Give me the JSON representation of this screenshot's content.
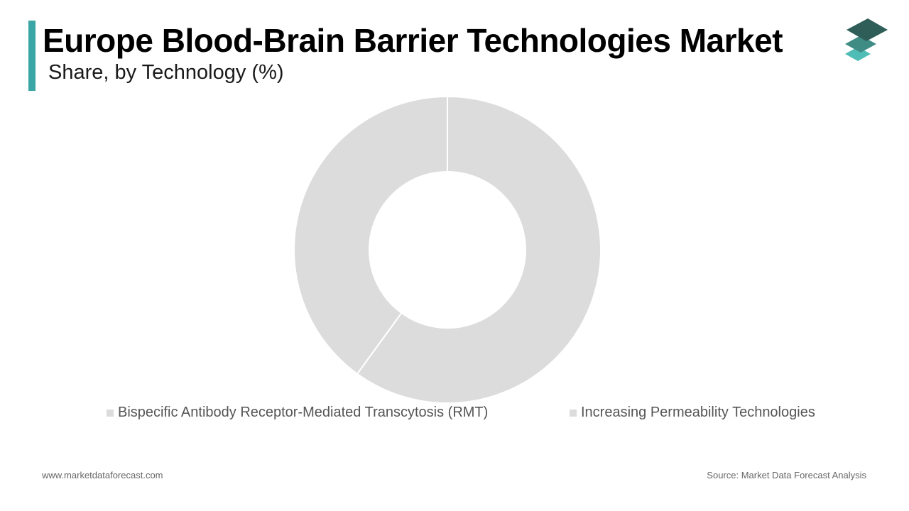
{
  "header": {
    "title": "Europe Blood-Brain Barrier Technologies Market",
    "subtitle": "Share, by Technology (%)",
    "accent_color": "#3aa6a6"
  },
  "logo": {
    "icon": "stacked-layers-logo-icon",
    "colors": [
      "#2f5e58",
      "#3f8c84",
      "#4fbdb5"
    ]
  },
  "chart_data": {
    "type": "pie",
    "donut": true,
    "title": "",
    "series": [
      {
        "name": "",
        "slices": [
          {
            "label": "Bispecific Antibody Receptor-Mediated Transcytosis (RMT)",
            "value": 60,
            "color": "#dcdcdc"
          },
          {
            "label": "Increasing Permeability Technologies",
            "value": 40,
            "color": "#dcdcdc"
          }
        ]
      }
    ],
    "legend_position": "bottom",
    "slice_border_color": "#ffffff"
  },
  "footer": {
    "website": "www.marketdataforecast.com",
    "source": "Source: Market Data Forecast Analysis"
  }
}
